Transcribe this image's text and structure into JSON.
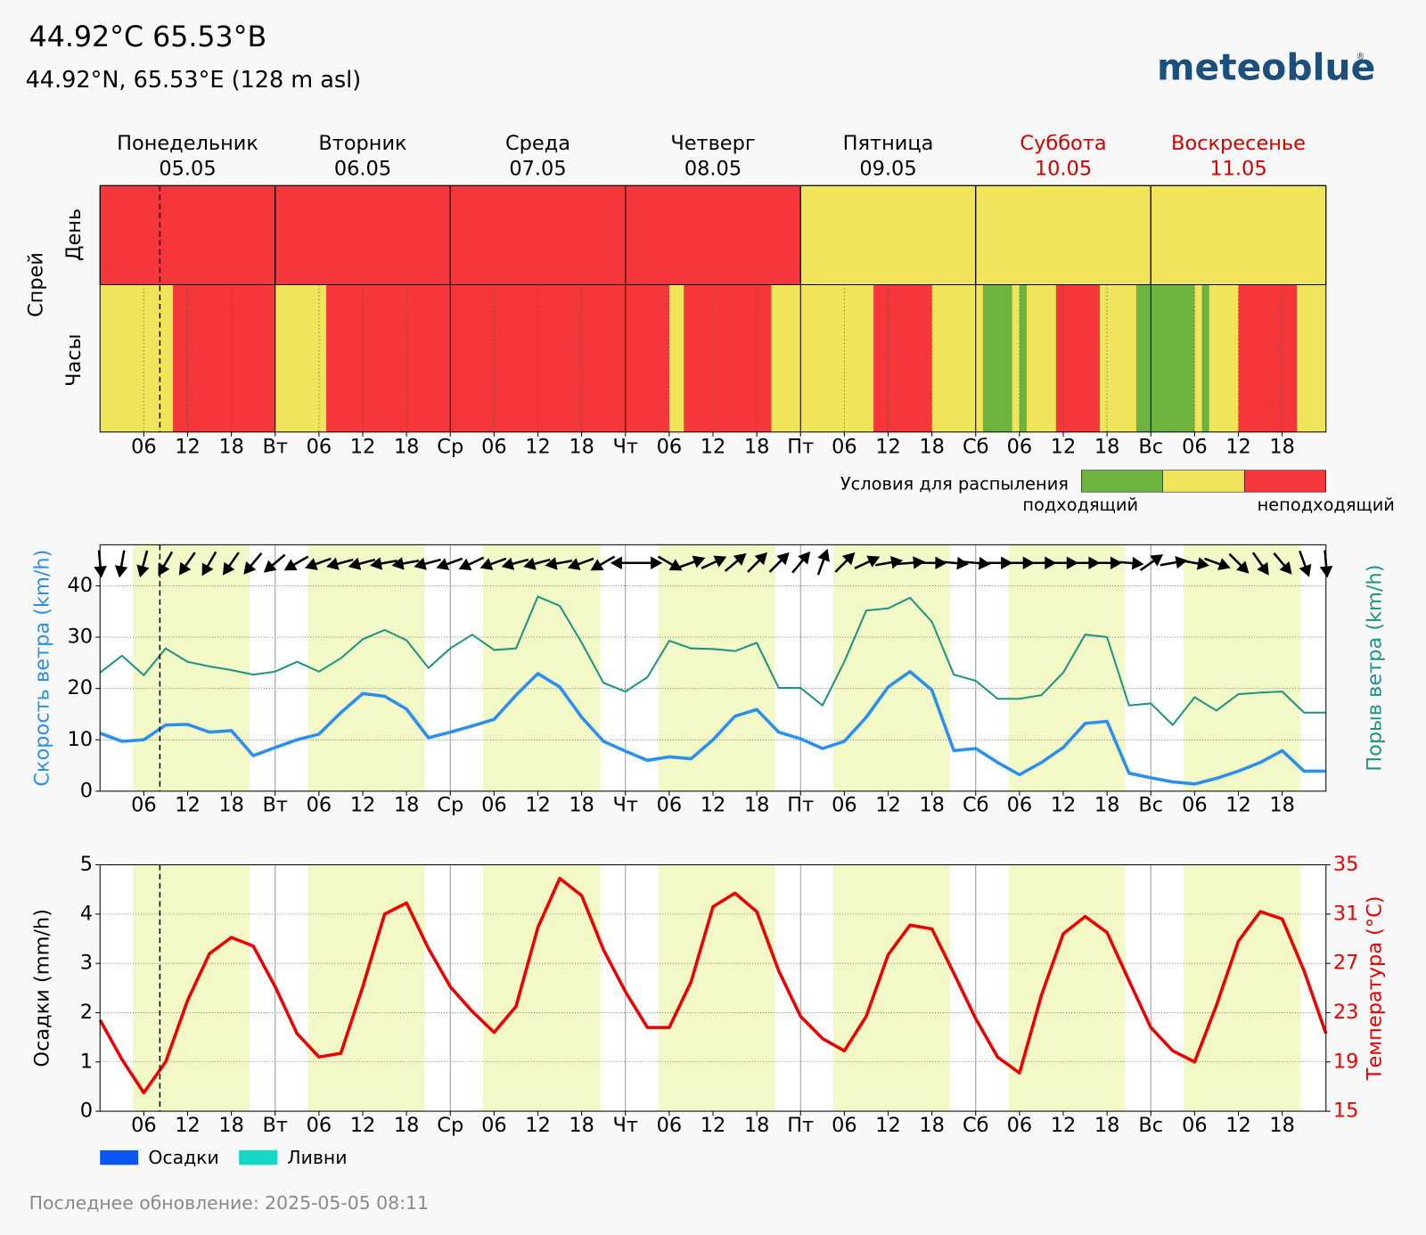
{
  "header": {
    "title": "44.92°C 65.53°В",
    "subtitle": "44.92°N, 65.53°E (128 m asl)",
    "logo": "meteoblue",
    "logo_mark": "®"
  },
  "footer": "Последнее обновление: 2025-05-05 08:11",
  "now_hour": 8.2,
  "chart_data": [
    {
      "type": "heatmap",
      "ylabel": "Спрей",
      "row_labels": [
        "День",
        "Часы"
      ],
      "days": [
        {
          "name": "Понедельник",
          "date": "05.05",
          "color": "#000000"
        },
        {
          "name": "Вторник",
          "date": "06.05",
          "color": "#000000"
        },
        {
          "name": "Среда",
          "date": "07.05",
          "color": "#000000"
        },
        {
          "name": "Четверг",
          "date": "08.05",
          "color": "#000000"
        },
        {
          "name": "Пятница",
          "date": "09.05",
          "color": "#000000"
        },
        {
          "name": "Суббота",
          "date": "10.05",
          "color": "#d40000"
        },
        {
          "name": "Воскресенье",
          "date": "11.05",
          "color": "#d40000"
        }
      ],
      "day_values": [
        2,
        2,
        2,
        2,
        1,
        1,
        1
      ],
      "values": [
        1,
        1,
        1,
        1,
        1,
        1,
        1,
        1,
        1,
        1,
        2,
        2,
        2,
        2,
        2,
        2,
        2,
        2,
        2,
        2,
        2,
        2,
        2,
        2,
        1,
        1,
        1,
        1,
        1,
        1,
        1,
        2,
        2,
        2,
        2,
        2,
        2,
        2,
        2,
        2,
        2,
        2,
        2,
        2,
        2,
        2,
        2,
        2,
        2,
        2,
        2,
        2,
        2,
        2,
        2,
        2,
        2,
        2,
        2,
        2,
        2,
        2,
        2,
        2,
        2,
        2,
        2,
        2,
        2,
        2,
        2,
        2,
        2,
        2,
        2,
        2,
        2,
        2,
        1,
        1,
        2,
        2,
        2,
        2,
        2,
        2,
        2,
        2,
        2,
        2,
        2,
        2,
        1,
        1,
        1,
        1,
        1,
        1,
        1,
        1,
        1,
        1,
        1,
        1,
        1,
        1,
        2,
        2,
        2,
        2,
        2,
        2,
        2,
        2,
        1,
        1,
        1,
        1,
        1,
        1,
        1,
        0,
        0,
        0,
        0,
        1,
        0,
        1,
        1,
        1,
        1,
        2,
        2,
        2,
        2,
        2,
        2,
        1,
        1,
        1,
        1,
        1,
        0,
        0,
        0,
        0,
        0,
        0,
        0,
        0,
        1,
        0,
        1,
        1,
        1,
        1,
        2,
        2,
        2,
        2,
        2,
        2,
        2,
        2,
        1,
        1,
        1,
        1
      ],
      "colors": [
        "#6db33f",
        "#f0e45a",
        "#f5363a"
      ],
      "legend_title": "Условия для распыления",
      "legend_labels": [
        "подходящий",
        "неподходящий"
      ],
      "xlim": [
        0,
        168
      ],
      "xticks": [
        {
          "value": 6,
          "label": "06"
        },
        12,
        18,
        {
          "value": 24,
          "label": "Вт"
        },
        {
          "value": 30,
          "label": "06"
        },
        {
          "value": 36,
          "label": "12"
        },
        {
          "value": 42,
          "label": "18"
        },
        {
          "value": 48,
          "label": "Ср"
        },
        {
          "value": 54,
          "label": "06"
        },
        {
          "value": 60,
          "label": "12"
        },
        {
          "value": 66,
          "label": "18"
        },
        {
          "value": 72,
          "label": "Чт"
        },
        {
          "value": 78,
          "label": "06"
        },
        {
          "value": 84,
          "label": "12"
        },
        {
          "value": 90,
          "label": "18"
        },
        {
          "value": 96,
          "label": "Пт"
        },
        {
          "value": 102,
          "label": "06"
        },
        {
          "value": 108,
          "label": "12"
        },
        {
          "value": 114,
          "label": "18"
        },
        {
          "value": 120,
          "label": "Сб"
        },
        {
          "value": 126,
          "label": "06"
        },
        {
          "value": 132,
          "label": "12"
        },
        {
          "value": 138,
          "label": "18"
        },
        {
          "value": 144,
          "label": "Вс"
        },
        {
          "value": 150,
          "label": "06"
        },
        {
          "value": 156,
          "label": "12"
        },
        {
          "value": 162,
          "label": "18"
        }
      ]
    },
    {
      "type": "line",
      "ylabel": "Скорость ветра (km/h)",
      "y2label": "Порыв ветра (km/h)",
      "ylabel_color": "#2b8ff0",
      "y2label_color": "#1f9484",
      "x": [
        0,
        3,
        6,
        9,
        12,
        15,
        18,
        21,
        24,
        27,
        30,
        33,
        36,
        39,
        42,
        45,
        48,
        51,
        54,
        57,
        60,
        63,
        66,
        69,
        72,
        75,
        78,
        81,
        84,
        87,
        90,
        93,
        96,
        99,
        102,
        105,
        108,
        111,
        114,
        117,
        120,
        123,
        126,
        129,
        132,
        135,
        138,
        141,
        144,
        147,
        150,
        153,
        156,
        159,
        162,
        165,
        168
      ],
      "series": [
        {
          "name": "Скорость ветра",
          "color": "#2b8ff0",
          "values": [
            11.3,
            9.7,
            10,
            12.9,
            13,
            11.5,
            11.8,
            6.9,
            8.5,
            10,
            11.1,
            15.3,
            19,
            18.5,
            16,
            10.4,
            11.5,
            12.7,
            14,
            18.7,
            22.9,
            20.3,
            14.4,
            9.7,
            7.8,
            6,
            6.7,
            6.3,
            10,
            14.6,
            15.9,
            11.5,
            10.2,
            8.3,
            9.7,
            14.4,
            20.3,
            23.3,
            19.7,
            7.9,
            8.3,
            5.6,
            3.2,
            5.6,
            8.5,
            13.2,
            13.6,
            3.5,
            2.6,
            1.8,
            1.4,
            2.5,
            3.9,
            5.6,
            7.9,
            3.9,
            3.9
          ]
        },
        {
          "name": "Порыв ветра",
          "color": "#1f9484",
          "values": [
            23.1,
            26.4,
            22.6,
            27.8,
            25.2,
            24.3,
            23.6,
            22.7,
            23.3,
            25.2,
            23.3,
            25.9,
            29.6,
            31.4,
            29.4,
            24,
            27.8,
            30.5,
            27.5,
            27.8,
            37.9,
            36.1,
            28.9,
            21.1,
            19.4,
            22.2,
            29.3,
            27.8,
            27.7,
            27.3,
            28.9,
            20.1,
            20.1,
            16.7,
            25.2,
            35.2,
            35.6,
            37.7,
            33,
            22.7,
            21.5,
            18,
            18,
            18.7,
            23.1,
            30.5,
            30,
            16.7,
            17.1,
            12.9,
            18.3,
            15.7,
            18.9,
            19.2,
            19.4,
            15.3,
            15.3
          ]
        }
      ],
      "wind_direction": [
        355,
        10,
        15,
        30,
        35,
        30,
        35,
        40,
        50,
        60,
        70,
        75,
        75,
        80,
        80,
        75,
        70,
        65,
        70,
        75,
        75,
        80,
        70,
        60,
        90,
        270,
        300,
        250,
        245,
        230,
        225,
        225,
        220,
        200,
        225,
        245,
        260,
        265,
        270,
        275,
        275,
        270,
        270,
        270,
        270,
        270,
        270,
        275,
        235,
        260,
        280,
        290,
        315,
        325,
        320,
        340,
        355
      ],
      "daylight": [
        4.5,
        20.5
      ],
      "ylim": [
        0,
        48
      ],
      "yticks": [
        0,
        10,
        20,
        30,
        40
      ],
      "grid": true,
      "xlim": [
        0,
        168
      ],
      "xticks": [
        {
          "value": 6,
          "label": "06"
        },
        12,
        18,
        {
          "value": 24,
          "label": "Вт"
        },
        {
          "value": 30,
          "label": "06"
        },
        {
          "value": 36,
          "label": "12"
        },
        {
          "value": 42,
          "label": "18"
        },
        {
          "value": 48,
          "label": "Ср"
        },
        {
          "value": 54,
          "label": "06"
        },
        {
          "value": 60,
          "label": "12"
        },
        {
          "value": 66,
          "label": "18"
        },
        {
          "value": 72,
          "label": "Чт"
        },
        {
          "value": 78,
          "label": "06"
        },
        {
          "value": 84,
          "label": "12"
        },
        {
          "value": 90,
          "label": "18"
        },
        {
          "value": 96,
          "label": "Пт"
        },
        {
          "value": 102,
          "label": "06"
        },
        {
          "value": 108,
          "label": "12"
        },
        {
          "value": 114,
          "label": "18"
        },
        {
          "value": 120,
          "label": "Сб"
        },
        {
          "value": 126,
          "label": "06"
        },
        {
          "value": 132,
          "label": "12"
        },
        {
          "value": 138,
          "label": "18"
        },
        {
          "value": 144,
          "label": "Вс"
        },
        {
          "value": 150,
          "label": "06"
        },
        {
          "value": 156,
          "label": "12"
        },
        {
          "value": 162,
          "label": "18"
        }
      ]
    },
    {
      "type": "bar",
      "ylabel": "Осадки (mm/h)",
      "y2label": "Температура (°C)",
      "ylabel_color": "#000000",
      "y2label_color": "#ee0000",
      "x": [
        0,
        3,
        6,
        9,
        12,
        15,
        18,
        21,
        24,
        27,
        30,
        33,
        36,
        39,
        42,
        45,
        48,
        51,
        54,
        57,
        60,
        63,
        66,
        69,
        72,
        75,
        78,
        81,
        84,
        87,
        90,
        93,
        96,
        99,
        102,
        105,
        108,
        111,
        114,
        117,
        120,
        123,
        126,
        129,
        132,
        135,
        138,
        141,
        144,
        147,
        150,
        153,
        156,
        159,
        162,
        165,
        168
      ],
      "series": [
        {
          "name": "Осадки",
          "color": "#0a55f0",
          "type": "bar",
          "values": [
            0,
            0,
            0,
            0,
            0,
            0,
            0,
            0,
            0,
            0,
            0,
            0,
            0,
            0,
            0,
            0,
            0,
            0,
            0,
            0,
            0,
            0,
            0,
            0,
            0,
            0,
            0,
            0,
            0,
            0,
            0,
            0,
            0,
            0,
            0,
            0,
            0,
            0,
            0,
            0,
            0,
            0,
            0,
            0,
            0,
            0,
            0,
            0,
            0,
            0,
            0,
            0,
            0,
            0,
            0,
            0,
            0
          ]
        },
        {
          "name": "Ливни",
          "color": "#14d8c4",
          "type": "bar",
          "values": [
            0,
            0,
            0,
            0,
            0,
            0,
            0,
            0,
            0,
            0,
            0,
            0,
            0,
            0,
            0,
            0,
            0,
            0,
            0,
            0,
            0,
            0,
            0,
            0,
            0,
            0,
            0,
            0,
            0,
            0,
            0,
            0,
            0,
            0,
            0,
            0,
            0,
            0,
            0,
            0,
            0,
            0,
            0,
            0,
            0,
            0,
            0,
            0,
            0,
            0,
            0,
            0,
            0,
            0,
            0,
            0,
            0
          ]
        },
        {
          "color": "#ee0000",
          "type": "line",
          "axis": "y2",
          "values": [
            22.4,
            19.2,
            16.5,
            19,
            24,
            27.8,
            29.1,
            28.4,
            25.1,
            21.3,
            19.4,
            19.7,
            25.1,
            31,
            31.9,
            28.2,
            25.1,
            23.1,
            21.4,
            23.5,
            29.9,
            33.9,
            32.5,
            28.1,
            24.7,
            21.8,
            21.8,
            25.5,
            31.6,
            32.7,
            31.2,
            26.4,
            22.7,
            20.9,
            19.9,
            22.7,
            27.7,
            30.1,
            29.8,
            26.2,
            22.5,
            19.4,
            18.1,
            24.4,
            29.4,
            30.8,
            29.5,
            25.6,
            21.8,
            19.9,
            19,
            23.6,
            28.8,
            31.2,
            30.6,
            26.4,
            21.3
          ]
        }
      ],
      "daylight": [
        4.5,
        20.5
      ],
      "ylim": [
        0,
        5
      ],
      "yticks": [
        0,
        1,
        2,
        3,
        4,
        5
      ],
      "y2lim": [
        15,
        35
      ],
      "y2ticks": [
        15,
        19,
        23,
        27,
        31,
        35
      ],
      "grid": true,
      "xlim": [
        0,
        168
      ],
      "xticks": [
        {
          "value": 6,
          "label": "06"
        },
        12,
        18,
        {
          "value": 24,
          "label": "Вт"
        },
        {
          "value": 30,
          "label": "06"
        },
        {
          "value": 36,
          "label": "12"
        },
        {
          "value": 42,
          "label": "18"
        },
        {
          "value": 48,
          "label": "Ср"
        },
        {
          "value": 54,
          "label": "06"
        },
        {
          "value": 60,
          "label": "12"
        },
        {
          "value": 66,
          "label": "18"
        },
        {
          "value": 72,
          "label": "Чт"
        },
        {
          "value": 78,
          "label": "06"
        },
        {
          "value": 84,
          "label": "12"
        },
        {
          "value": 90,
          "label": "18"
        },
        {
          "value": 96,
          "label": "Пт"
        },
        {
          "value": 102,
          "label": "06"
        },
        {
          "value": 108,
          "label": "12"
        },
        {
          "value": 114,
          "label": "18"
        },
        {
          "value": 120,
          "label": "Сб"
        },
        {
          "value": 126,
          "label": "06"
        },
        {
          "value": 132,
          "label": "12"
        },
        {
          "value": 138,
          "label": "18"
        },
        {
          "value": 144,
          "label": "Вс"
        },
        {
          "value": 150,
          "label": "06"
        },
        {
          "value": 156,
          "label": "12"
        },
        {
          "value": 162,
          "label": "18"
        }
      ]
    }
  ]
}
